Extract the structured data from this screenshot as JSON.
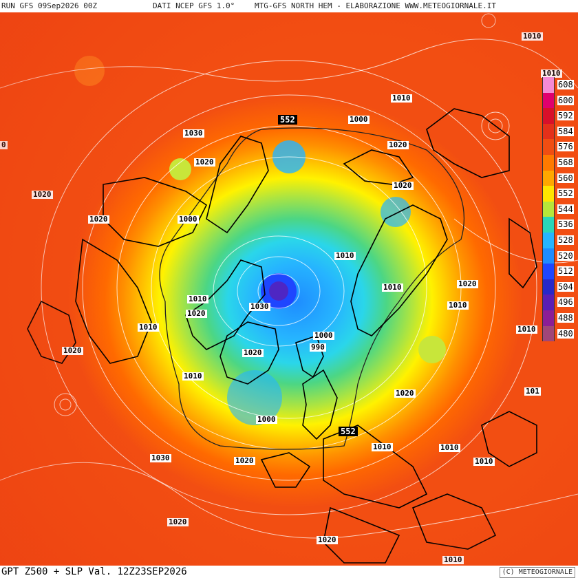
{
  "header": {
    "run": "RUN GFS 09Sep2026 00Z",
    "source": "DATI NCEP GFS 1.0°",
    "credit": "MTG-GFS NORTH HEM - ELABORAZIONE WWW.METEOGIORNALE.IT"
  },
  "footer": {
    "title": "GPT Z500 + SLP Val. 12Z23SEP2026",
    "copyright": "(C) METEOGIORNALE"
  },
  "legend": {
    "items": [
      {
        "label": "608",
        "color": "#f58ad6"
      },
      {
        "label": "600",
        "color": "#e0006e"
      },
      {
        "label": "592",
        "color": "#d8102a"
      },
      {
        "label": "584",
        "color": "#e4301a"
      },
      {
        "label": "576",
        "color": "#f04e12"
      },
      {
        "label": "568",
        "color": "#ff7a00"
      },
      {
        "label": "560",
        "color": "#ffa800"
      },
      {
        "label": "552",
        "color": "#ffe600"
      },
      {
        "label": "544",
        "color": "#b6e63a"
      },
      {
        "label": "536",
        "color": "#2ad6b8"
      },
      {
        "label": "528",
        "color": "#26b4ff"
      },
      {
        "label": "520",
        "color": "#1e8cff"
      },
      {
        "label": "512",
        "color": "#1e46ff"
      },
      {
        "label": "504",
        "color": "#2828c8"
      },
      {
        "label": "496",
        "color": "#5a1eb4"
      },
      {
        "label": "488",
        "color": "#8c1e96"
      },
      {
        "label": "480",
        "color": "#a04678"
      }
    ]
  },
  "pressure_labels": [
    {
      "text": "1010"
    },
    {
      "text": "1010"
    },
    {
      "text": "1010"
    },
    {
      "text": "1000"
    },
    {
      "text": "1030"
    },
    {
      "text": "1020"
    },
    {
      "text": "0"
    },
    {
      "text": "1020"
    },
    {
      "text": "1020"
    },
    {
      "text": "1020"
    },
    {
      "text": "1020"
    },
    {
      "text": "1000"
    },
    {
      "text": "1010"
    },
    {
      "text": "1020"
    },
    {
      "text": "1010"
    },
    {
      "text": "1010"
    },
    {
      "text": "1010"
    },
    {
      "text": "1020"
    },
    {
      "text": "1030"
    },
    {
      "text": "1010"
    },
    {
      "text": "1010"
    },
    {
      "text": "1000"
    },
    {
      "text": "990"
    },
    {
      "text": "1020"
    },
    {
      "text": "1020"
    },
    {
      "text": "1010"
    },
    {
      "text": "1020"
    },
    {
      "text": "101"
    },
    {
      "text": "1000"
    },
    {
      "text": "1030"
    },
    {
      "text": "1020"
    },
    {
      "text": "1010"
    },
    {
      "text": "1010"
    },
    {
      "text": "1010"
    },
    {
      "text": "1020"
    },
    {
      "text": "1020"
    },
    {
      "text": "1010"
    }
  ],
  "geopotential_labels": [
    {
      "text": "552"
    },
    {
      "text": "552"
    }
  ],
  "colors": {
    "ocean_warm": "#f24e12",
    "polar_low": "#1e46ff",
    "coastline": "#000000"
  }
}
